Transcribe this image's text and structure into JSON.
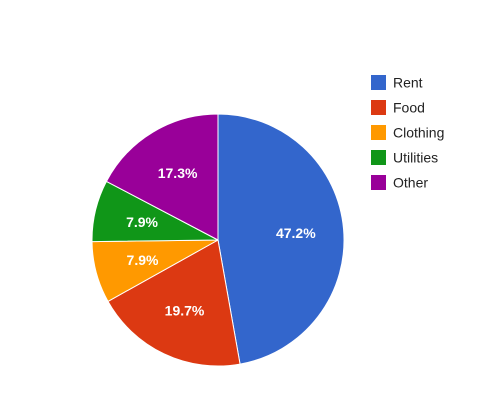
{
  "chart_data": {
    "type": "pie",
    "title": "",
    "categories": [
      "Rent",
      "Food",
      "Clothing",
      "Utilities",
      "Other"
    ],
    "values": [
      47.2,
      19.7,
      7.9,
      7.9,
      17.3
    ],
    "labels": [
      "47.2%",
      "19.7%",
      "7.9%",
      "7.9%",
      "17.3%"
    ],
    "colors": [
      "#3366cc",
      "#dc3912",
      "#ff9900",
      "#109618",
      "#990099"
    ],
    "start_angle": "12 o'clock, clockwise",
    "legend": {
      "position": "right",
      "entries": [
        "Rent",
        "Food",
        "Clothing",
        "Utilities",
        "Other"
      ]
    }
  }
}
